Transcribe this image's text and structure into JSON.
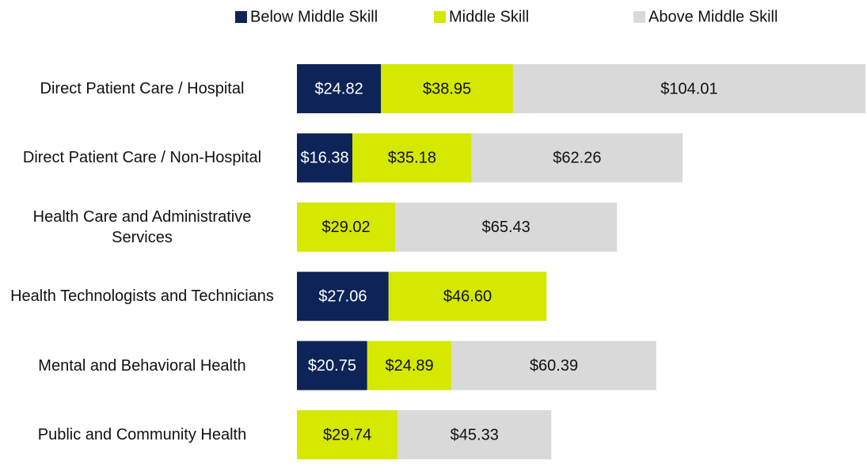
{
  "chart_data": {
    "type": "stacked_bar_horizontal",
    "categories": [
      "Direct Patient Care / Hospital",
      "Direct Patient Care / Non-Hospital",
      "Health Care and Administrative Services",
      "Health Technologists and Technicians",
      "Mental and Behavioral Health",
      "Public and Community Health"
    ],
    "series": [
      {
        "name": "Below Middle Skill",
        "color": "#0e2458",
        "values": [
          24.82,
          16.38,
          null,
          27.06,
          20.75,
          null
        ],
        "value_labels": [
          "$24.82",
          "$16.38",
          null,
          "$27.06",
          "$20.75",
          null
        ]
      },
      {
        "name": "Middle Skill",
        "color": "#d4e800",
        "values": [
          38.95,
          35.18,
          29.02,
          46.6,
          24.89,
          29.74
        ],
        "value_labels": [
          "$38.95",
          "$35.18",
          "$29.02",
          "$46.60",
          "$24.89",
          "$29.74"
        ]
      },
      {
        "name": "Above Middle Skill",
        "color": "#d9d9d9",
        "values": [
          104.01,
          62.26,
          65.43,
          null,
          60.39,
          45.33
        ],
        "value_labels": [
          "$104.01",
          "$62.26",
          "$65.43",
          null,
          "$60.39",
          "$45.33"
        ]
      }
    ],
    "legend": "top"
  }
}
